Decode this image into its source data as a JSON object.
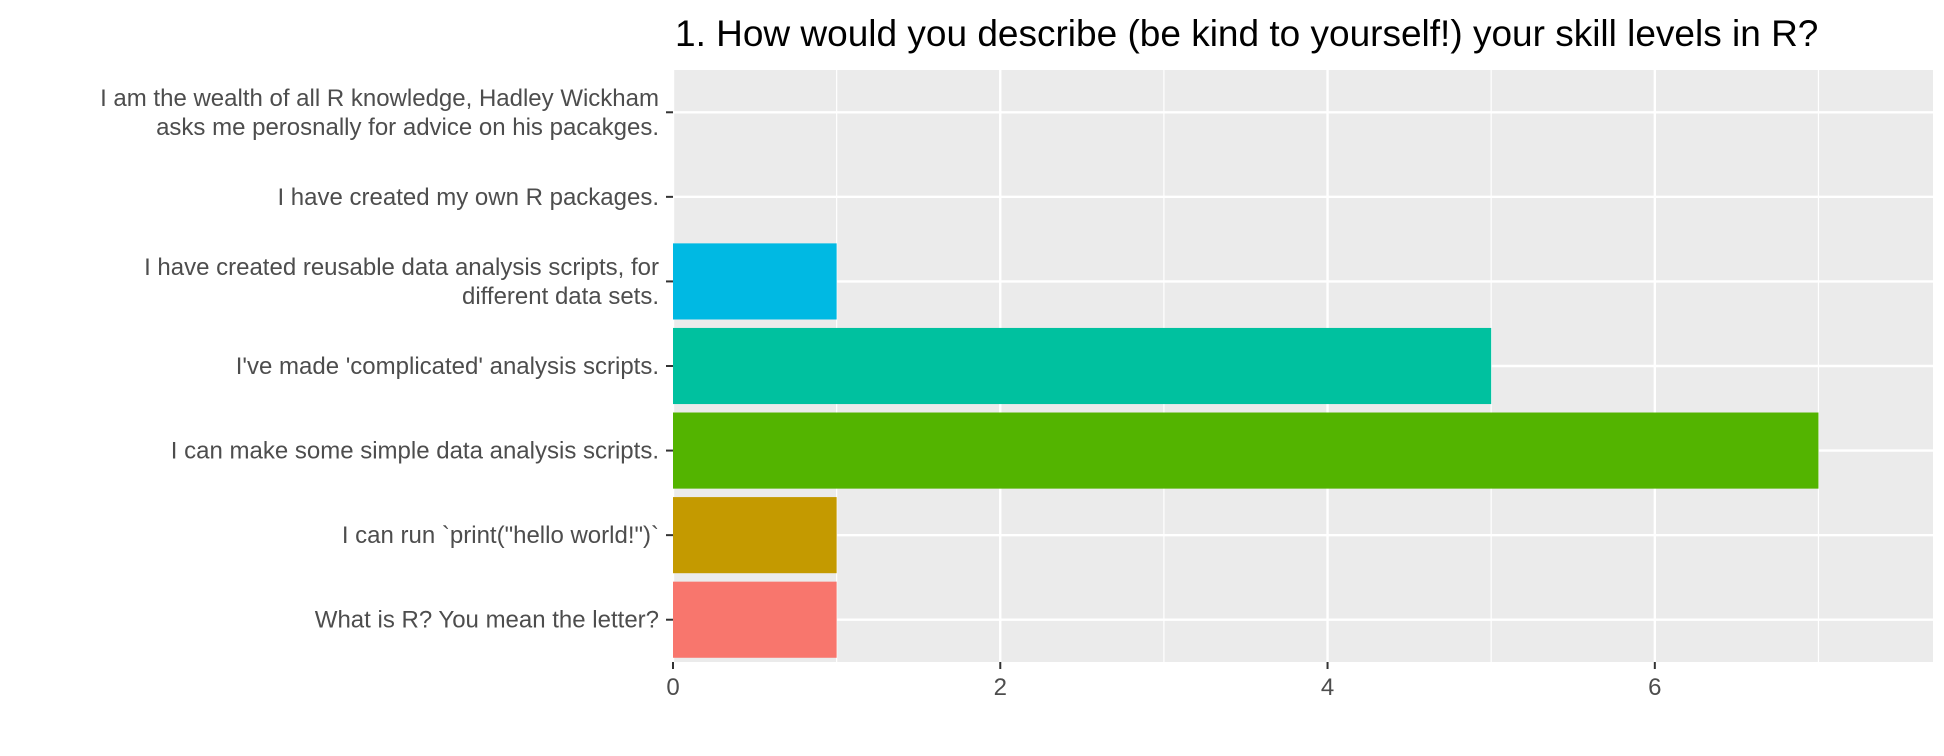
{
  "chart_data": {
    "type": "bar",
    "orientation": "horizontal",
    "title": "1. How would you describe (be kind to yourself!) your skill levels in R?",
    "xlabel": "",
    "ylabel": "",
    "xlim": [
      0,
      7.7
    ],
    "x_ticks": [
      0,
      2,
      4,
      6
    ],
    "grid": true,
    "legend": "none",
    "categories": [
      [
        "I am the wealth of all R knowledge, Hadley Wickham",
        "asks me perosnally for advice on his pacakges."
      ],
      [
        "I have created my own R packages."
      ],
      [
        "I have created reusable data analysis scripts, for",
        "different data sets."
      ],
      [
        "I've made 'complicated' analysis scripts."
      ],
      [
        "I can make some simple data analysis scripts."
      ],
      [
        "I can run `print(\"hello world!\")`"
      ],
      [
        "What is R? You mean the letter?"
      ]
    ],
    "values": [
      0,
      0,
      1,
      5,
      7,
      1,
      1
    ],
    "colors": [
      "#FF61C3",
      "#619CFF",
      "#00B9E3",
      "#00C19F",
      "#53B400",
      "#C49A00",
      "#F8766D"
    ],
    "panel_background": "#EBEBEB",
    "grid_color": "#FFFFFF"
  }
}
